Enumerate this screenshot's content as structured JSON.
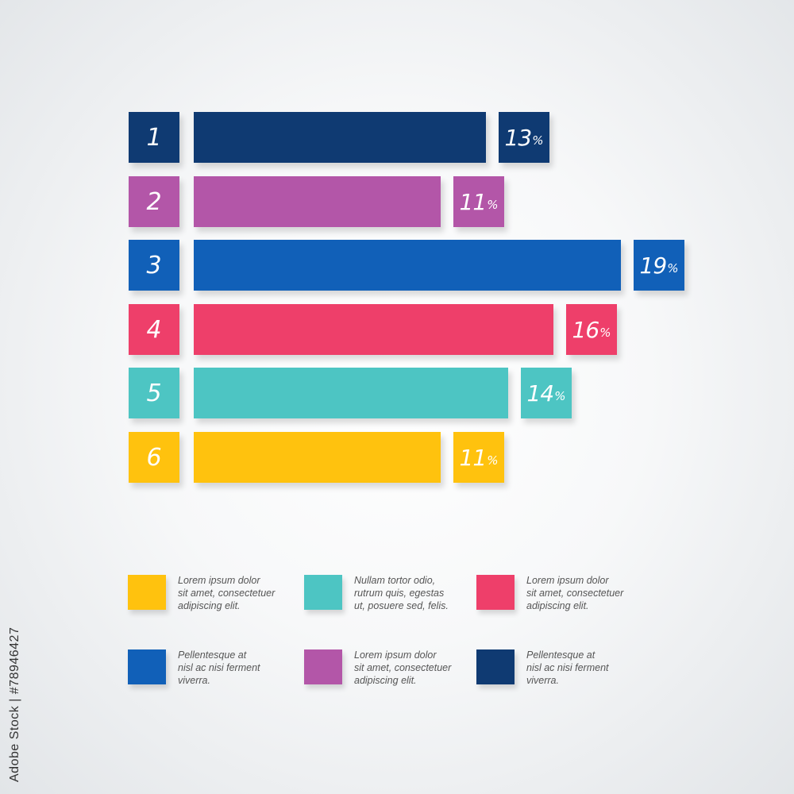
{
  "chart_data": {
    "type": "bar",
    "orientation": "horizontal",
    "categories": [
      "1",
      "2",
      "3",
      "4",
      "5",
      "6"
    ],
    "values": [
      13,
      11,
      19,
      16,
      14,
      11
    ],
    "value_labels": [
      "13",
      "11",
      "19",
      "16",
      "14",
      "11"
    ],
    "unit": "%",
    "colors": [
      "#0f3a72",
      "#b356a8",
      "#1160b8",
      "#ee3f6a",
      "#4dc5c3",
      "#ffc20e"
    ],
    "title": "",
    "xlabel": "",
    "ylabel": "",
    "grid": false,
    "legend_position": "bottom"
  },
  "legend": {
    "items": [
      {
        "text": "Lorem ipsum dolor\nsit amet, consectetuer\nadipiscing elit.",
        "color": "#ffc20e"
      },
      {
        "text": "Nullam tortor odio,\nrutrum quis, egestas\nut, posuere sed, felis.",
        "color": "#4dc5c3"
      },
      {
        "text": "Lorem ipsum dolor\nsit amet, consectetuer\nadipiscing elit.",
        "color": "#ee3f6a"
      },
      {
        "text": "Pellentesque at\nnisl ac nisi ferment\nviverra.",
        "color": "#1160b8"
      },
      {
        "text": "Lorem ipsum dolor\nsit amet, consectetuer\nadipiscing elit.",
        "color": "#b356a8"
      },
      {
        "text": "Pellentesque at\nnisl ac nisi ferment\nviverra.",
        "color": "#0f3a72"
      }
    ]
  },
  "watermark": {
    "side_text": "Adobe Stock | #78946427"
  }
}
